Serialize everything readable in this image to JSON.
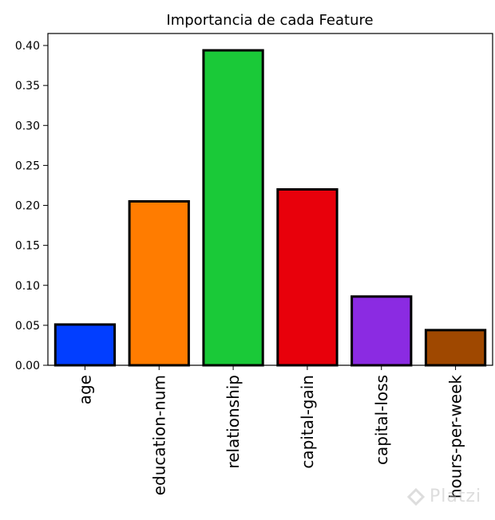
{
  "chart_data": {
    "type": "bar",
    "title": "Importancia de cada Feature",
    "categories": [
      "age",
      "education-num",
      "relationship",
      "capital-gain",
      "capital-loss",
      "hours-per-week"
    ],
    "values": [
      0.051,
      0.205,
      0.394,
      0.22,
      0.086,
      0.044
    ],
    "colors": [
      "#023eff",
      "#ff7c00",
      "#1ac938",
      "#e8000b",
      "#8b2be2",
      "#9f4800"
    ],
    "edge_color": "#000000",
    "ylim": [
      0,
      0.415
    ],
    "yticks": [
      "0.00",
      "0.05",
      "0.10",
      "0.15",
      "0.20",
      "0.25",
      "0.30",
      "0.35",
      "0.40"
    ],
    "ytick_values": [
      0,
      0.05,
      0.1,
      0.15,
      0.2,
      0.25,
      0.3,
      0.35,
      0.4
    ],
    "xlabel": "",
    "ylabel": "",
    "xtick_rotation": 90,
    "grid": false
  },
  "watermark": {
    "text": "Platzi"
  }
}
